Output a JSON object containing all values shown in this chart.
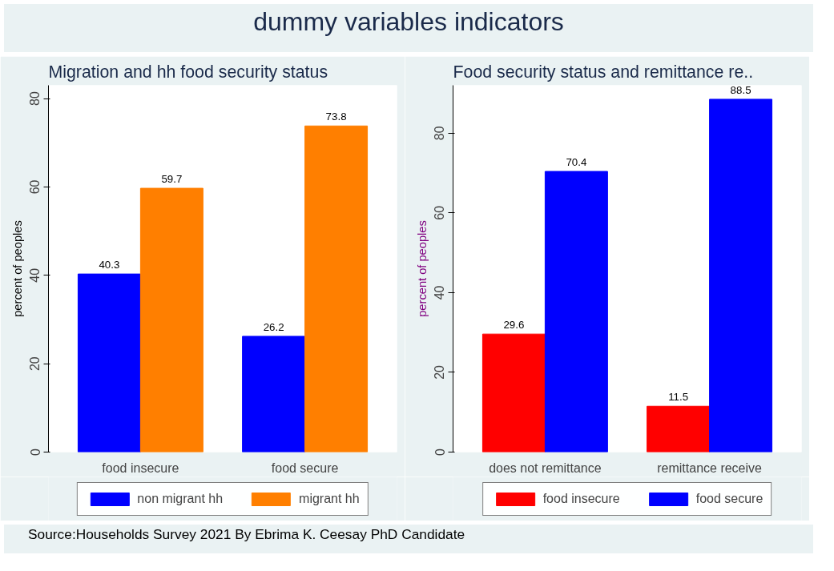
{
  "chart_data": [
    {
      "type": "other",
      "title": "dummy variables indicators"
    },
    {
      "type": "bar",
      "title": "Migration and hh food security status",
      "ylabel": "percent of peoples",
      "categories": [
        "food insecure",
        "food secure"
      ],
      "series": [
        {
          "name": "non migrant hh",
          "color": "#0000ff",
          "values": [
            40.3,
            26.2
          ]
        },
        {
          "name": "migrant hh",
          "color": "#ff7f00",
          "values": [
            59.7,
            73.8
          ]
        }
      ],
      "ylim": [
        0,
        83
      ],
      "yticks": [
        0,
        20,
        40,
        60,
        80
      ],
      "data_labels": true,
      "legend": "bottom",
      "grid": false
    },
    {
      "type": "bar",
      "title": "Food security status  and remittance re..",
      "ylabel": "percent of peoples",
      "categories": [
        "does not remittance",
        "remittance receive"
      ],
      "series": [
        {
          "name": "food insecure",
          "color": "#ff0000",
          "values": [
            29.6,
            11.5
          ]
        },
        {
          "name": "food secure",
          "color": "#0000ff",
          "values": [
            70.4,
            88.5
          ]
        }
      ],
      "ylim": [
        0,
        92
      ],
      "yticks": [
        0,
        20,
        40,
        60,
        80
      ],
      "data_labels": true,
      "legend": "bottom",
      "grid": false
    },
    {
      "type": "other",
      "annotations": [
        "Source:Households Survey 2021 By Ebrima K. Ceesay PhD Candidate"
      ]
    }
  ]
}
